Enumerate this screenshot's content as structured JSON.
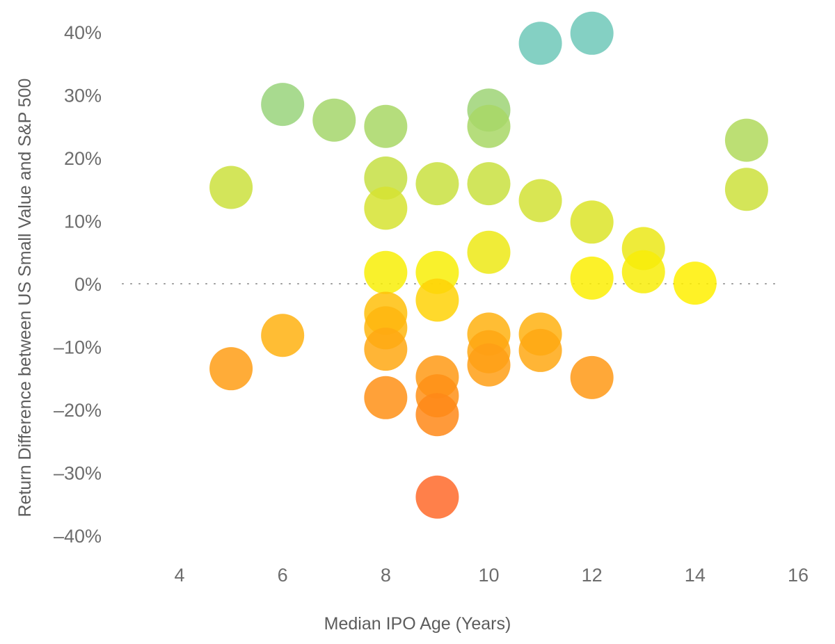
{
  "chart_data": {
    "type": "scatter",
    "xlabel": "Median IPO Age (Years)",
    "ylabel": "Return Difference between US Small Value and S&P 500",
    "xlim": [
      2.7,
      16.1
    ],
    "ylim": [
      -45,
      42
    ],
    "x_ticks": [
      4,
      6,
      8,
      10,
      12,
      14,
      16
    ],
    "y_ticks": [
      -40,
      -30,
      -20,
      -10,
      0,
      10,
      20,
      30,
      40
    ],
    "x_tick_labels": [
      "4",
      "6",
      "8",
      "10",
      "12",
      "14",
      "16"
    ],
    "y_tick_labels": [
      "–40%",
      "–30%",
      "–20%",
      "–10%",
      "0%",
      "10%",
      "20%",
      "30%",
      "40%"
    ],
    "zero_reference_line": "dotted",
    "grid": false,
    "points": [
      {
        "x": 5,
        "y": 15.3
      },
      {
        "x": 5,
        "y": -13.5
      },
      {
        "x": 6,
        "y": 28.5
      },
      {
        "x": 6,
        "y": -8.2
      },
      {
        "x": 7,
        "y": 26.0
      },
      {
        "x": 8,
        "y": 25.0
      },
      {
        "x": 8,
        "y": 16.8
      },
      {
        "x": 8,
        "y": 12.0
      },
      {
        "x": 8,
        "y": 1.8
      },
      {
        "x": 8,
        "y": -4.7
      },
      {
        "x": 8,
        "y": -7.0
      },
      {
        "x": 8,
        "y": -10.4
      },
      {
        "x": 8,
        "y": -18.1
      },
      {
        "x": 9,
        "y": 15.9
      },
      {
        "x": 9,
        "y": 1.8
      },
      {
        "x": 9,
        "y": -2.6
      },
      {
        "x": 9,
        "y": -14.8
      },
      {
        "x": 9,
        "y": -17.8
      },
      {
        "x": 9,
        "y": -20.8
      },
      {
        "x": 9,
        "y": -33.9
      },
      {
        "x": 10,
        "y": 27.6
      },
      {
        "x": 10,
        "y": 25.0
      },
      {
        "x": 10,
        "y": 15.9
      },
      {
        "x": 10,
        "y": 5.0
      },
      {
        "x": 10,
        "y": -8.0
      },
      {
        "x": 10,
        "y": -10.8
      },
      {
        "x": 10,
        "y": -12.9
      },
      {
        "x": 11,
        "y": 38.2
      },
      {
        "x": 11,
        "y": 13.2
      },
      {
        "x": 11,
        "y": -8.0
      },
      {
        "x": 11,
        "y": -10.6
      },
      {
        "x": 12,
        "y": 39.8
      },
      {
        "x": 12,
        "y": 9.8
      },
      {
        "x": 12,
        "y": 0.9
      },
      {
        "x": 12,
        "y": -14.9
      },
      {
        "x": 13,
        "y": 5.6
      },
      {
        "x": 13,
        "y": 1.9
      },
      {
        "x": 14,
        "y": 0.1
      },
      {
        "x": 15,
        "y": 22.8
      },
      {
        "x": 15,
        "y": 15.0
      }
    ],
    "color_scale": [
      {
        "y": -34,
        "color": "#ff6a2a"
      },
      {
        "y": -20,
        "color": "#ff8a16"
      },
      {
        "y": -12,
        "color": "#ffa215"
      },
      {
        "y": -4,
        "color": "#ffc20a"
      },
      {
        "y": 0,
        "color": "#fff000"
      },
      {
        "y": 8,
        "color": "#e2e521"
      },
      {
        "y": 16,
        "color": "#c9e040"
      },
      {
        "y": 25,
        "color": "#a8d765"
      },
      {
        "y": 38,
        "color": "#6fc8b8"
      }
    ],
    "point_opacity": 0.85
  }
}
